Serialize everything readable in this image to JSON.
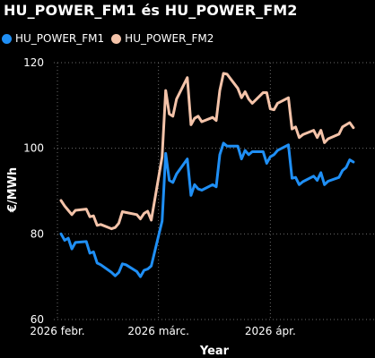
{
  "chart_data": {
    "type": "line",
    "title": "HU_POWER_FM1 és HU_POWER_FM2",
    "xlabel": "Year",
    "ylabel": "€/MWh",
    "ylim": [
      60,
      120
    ],
    "yticks": [
      "60",
      "80",
      "100",
      "120"
    ],
    "xlim": [
      "2026-01-31",
      "2026-04-30"
    ],
    "xticks": [
      {
        "date": "2026-02-01",
        "label": "2026 febr."
      },
      {
        "date": "2026-03-01",
        "label": "2026 márc."
      },
      {
        "date": "2026-04-01",
        "label": "2026 ápr."
      }
    ],
    "grid": "horizontal dotted",
    "legend_position": "top-left",
    "series": [
      {
        "name": "HU_POWER_FM1",
        "color": "#1f8ff5",
        "points": [
          [
            "2026-02-02",
            80
          ],
          [
            "2026-02-03",
            78.5
          ],
          [
            "2026-02-04",
            79
          ],
          [
            "2026-02-05",
            76.5
          ],
          [
            "2026-02-06",
            78
          ],
          [
            "2026-02-09",
            78.2
          ],
          [
            "2026-02-10",
            75.5
          ],
          [
            "2026-02-11",
            75.8
          ],
          [
            "2026-02-12",
            73.2
          ],
          [
            "2026-02-13",
            72.8
          ],
          [
            "2026-02-16",
            71
          ],
          [
            "2026-02-17",
            70.2
          ],
          [
            "2026-02-18",
            71
          ],
          [
            "2026-02-19",
            73
          ],
          [
            "2026-02-20",
            72.8
          ],
          [
            "2026-02-23",
            71.2
          ],
          [
            "2026-02-24",
            70
          ],
          [
            "2026-02-25",
            71.5
          ],
          [
            "2026-02-26",
            71.8
          ],
          [
            "2026-02-27",
            72.5
          ],
          [
            "2026-03-02",
            83
          ],
          [
            "2026-03-03",
            98.8
          ],
          [
            "2026-03-04",
            92.5
          ],
          [
            "2026-03-05",
            92
          ],
          [
            "2026-03-06",
            94
          ],
          [
            "2026-03-09",
            97.5
          ],
          [
            "2026-03-10",
            89
          ],
          [
            "2026-03-11",
            91.5
          ],
          [
            "2026-03-12",
            90.5
          ],
          [
            "2026-03-13",
            90.2
          ],
          [
            "2026-03-16",
            91.5
          ],
          [
            "2026-03-17",
            91
          ],
          [
            "2026-03-18",
            98.5
          ],
          [
            "2026-03-19",
            101.2
          ],
          [
            "2026-03-20",
            100.5
          ],
          [
            "2026-03-23",
            100.5
          ],
          [
            "2026-03-24",
            97.5
          ],
          [
            "2026-03-25",
            99.5
          ],
          [
            "2026-03-26",
            98.5
          ],
          [
            "2026-03-27",
            99.2
          ],
          [
            "2026-03-30",
            99.2
          ],
          [
            "2026-03-31",
            96.5
          ],
          [
            "2026-04-01",
            98
          ],
          [
            "2026-04-02",
            98.5
          ],
          [
            "2026-04-03",
            99.5
          ],
          [
            "2026-04-06",
            100.8
          ],
          [
            "2026-04-07",
            93
          ],
          [
            "2026-04-08",
            93.2
          ],
          [
            "2026-04-09",
            91.5
          ],
          [
            "2026-04-10",
            92.2
          ],
          [
            "2026-04-13",
            93.5
          ],
          [
            "2026-04-14",
            92.5
          ],
          [
            "2026-04-15",
            94.3
          ],
          [
            "2026-04-16",
            91.5
          ],
          [
            "2026-04-17",
            92.3
          ],
          [
            "2026-04-20",
            93.2
          ],
          [
            "2026-04-21",
            94.8
          ],
          [
            "2026-04-22",
            95.5
          ],
          [
            "2026-04-23",
            97.3
          ],
          [
            "2026-04-24",
            96.8
          ]
        ]
      },
      {
        "name": "HU_POWER_FM2",
        "color": "#f4c3a9",
        "points": [
          [
            "2026-02-02",
            87.8
          ],
          [
            "2026-02-03",
            86.5
          ],
          [
            "2026-02-04",
            85.5
          ],
          [
            "2026-02-05",
            84.5
          ],
          [
            "2026-02-06",
            85.5
          ],
          [
            "2026-02-09",
            85.8
          ],
          [
            "2026-02-10",
            84
          ],
          [
            "2026-02-11",
            84.2
          ],
          [
            "2026-02-12",
            82
          ],
          [
            "2026-02-13",
            82.2
          ],
          [
            "2026-02-16",
            81.2
          ],
          [
            "2026-02-17",
            81.5
          ],
          [
            "2026-02-18",
            82.5
          ],
          [
            "2026-02-19",
            85.2
          ],
          [
            "2026-02-20",
            85
          ],
          [
            "2026-02-23",
            84.5
          ],
          [
            "2026-02-24",
            83.5
          ],
          [
            "2026-02-25",
            84.8
          ],
          [
            "2026-02-26",
            85.3
          ],
          [
            "2026-02-27",
            83.2
          ],
          [
            "2026-03-02",
            98
          ],
          [
            "2026-03-03",
            113.5
          ],
          [
            "2026-03-04",
            108
          ],
          [
            "2026-03-05",
            107.5
          ],
          [
            "2026-03-06",
            111.5
          ],
          [
            "2026-03-09",
            116.5
          ],
          [
            "2026-03-10",
            105.5
          ],
          [
            "2026-03-11",
            107
          ],
          [
            "2026-03-12",
            107.5
          ],
          [
            "2026-03-13",
            106.2
          ],
          [
            "2026-03-16",
            107.2
          ],
          [
            "2026-03-17",
            106.5
          ],
          [
            "2026-03-18",
            113.5
          ],
          [
            "2026-03-19",
            117.5
          ],
          [
            "2026-03-20",
            117.3
          ],
          [
            "2026-03-23",
            114
          ],
          [
            "2026-03-24",
            111.8
          ],
          [
            "2026-03-25",
            113.2
          ],
          [
            "2026-03-26",
            111.5
          ],
          [
            "2026-03-27",
            110.5
          ],
          [
            "2026-03-30",
            113
          ],
          [
            "2026-03-31",
            113
          ],
          [
            "2026-04-01",
            109.2
          ],
          [
            "2026-04-02",
            109
          ],
          [
            "2026-04-03",
            110.5
          ],
          [
            "2026-04-06",
            111.8
          ],
          [
            "2026-04-07",
            104.5
          ],
          [
            "2026-04-08",
            105
          ],
          [
            "2026-04-09",
            102.5
          ],
          [
            "2026-04-10",
            103.2
          ],
          [
            "2026-04-13",
            104.2
          ],
          [
            "2026-04-14",
            102.5
          ],
          [
            "2026-04-15",
            104.2
          ],
          [
            "2026-04-16",
            101.3
          ],
          [
            "2026-04-17",
            102.2
          ],
          [
            "2026-04-20",
            103.3
          ],
          [
            "2026-04-21",
            105
          ],
          [
            "2026-04-22",
            105.5
          ],
          [
            "2026-04-23",
            106
          ],
          [
            "2026-04-24",
            104.8
          ]
        ]
      }
    ]
  }
}
